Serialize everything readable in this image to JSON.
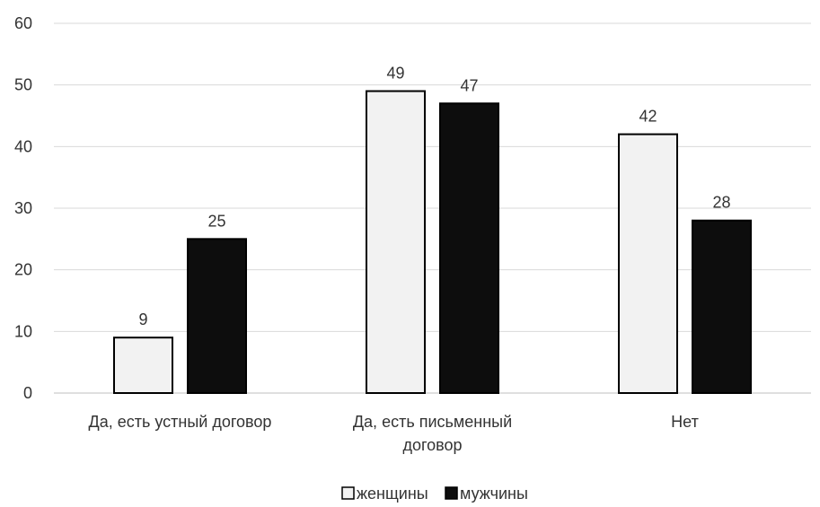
{
  "chart_data": {
    "type": "bar",
    "title": "",
    "xlabel": "",
    "ylabel": "",
    "categories": [
      [
        "Да, есть  устный договор"
      ],
      [
        "Да, есть письменный",
        "договор"
      ],
      [
        "Нет"
      ]
    ],
    "series": [
      {
        "name": "женщины",
        "values": [
          9,
          49,
          42
        ],
        "color": "#f2f2f2"
      },
      {
        "name": "мужчины",
        "values": [
          25,
          47,
          28
        ],
        "color": "#0d0d0d"
      }
    ],
    "ylim": [
      0,
      60
    ],
    "yticks": [
      0,
      10,
      20,
      30,
      40,
      50,
      60
    ],
    "grid": true,
    "legend_position": "bottom",
    "data_labels": true
  }
}
